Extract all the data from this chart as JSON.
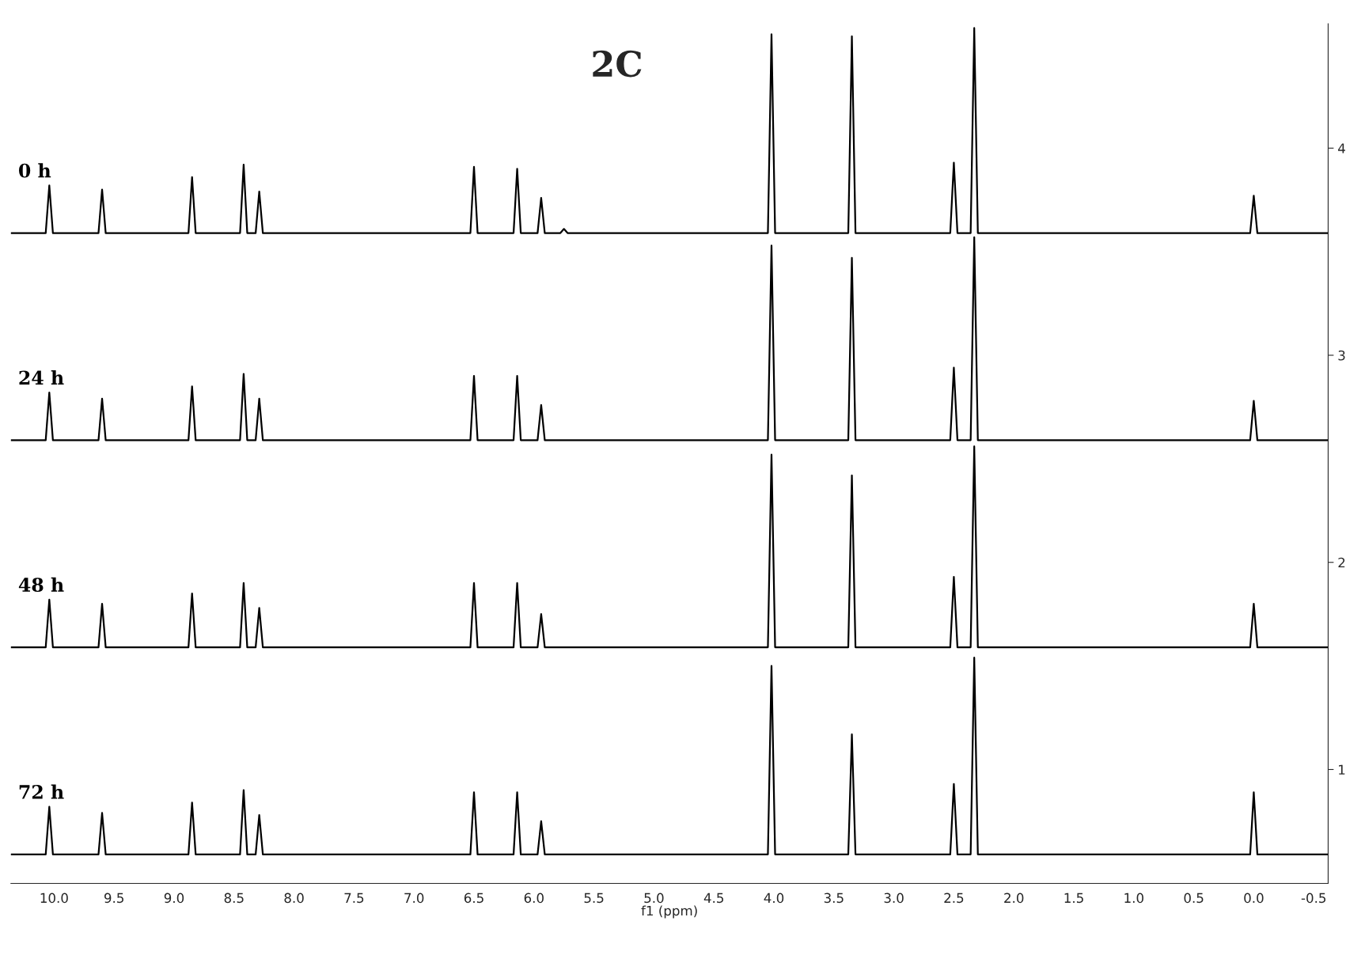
{
  "chart_data": {
    "type": "line",
    "title": "2C",
    "xlabel": "f1 (ppm)",
    "xlim": [
      10.36,
      -0.62
    ],
    "ylim": [
      0.45,
      4.6
    ],
    "xticks": [
      {
        "value": 10,
        "label": "10.0"
      },
      9.5,
      {
        "value": 9,
        "label": "9.0"
      },
      8.5,
      {
        "value": 8,
        "label": "8.0"
      },
      7.5,
      {
        "value": 7,
        "label": "7.0"
      },
      6.5,
      {
        "value": 6,
        "label": "6.0"
      },
      5.5,
      {
        "value": 5,
        "label": "5.0"
      },
      4.5,
      {
        "value": 4,
        "label": "4.0"
      },
      3.5,
      {
        "value": 3,
        "label": "3.0"
      },
      2.5,
      {
        "value": 2,
        "label": "2.0"
      },
      1.5,
      {
        "value": 1,
        "label": "1.0"
      },
      0.5,
      {
        "value": 0,
        "label": "0.0"
      },
      -0.5
    ],
    "yticks": [
      1,
      2,
      3,
      4
    ],
    "grid": false,
    "legend": false,
    "marker": "none",
    "line_style": "solid",
    "series": [
      {
        "name": "0 h",
        "color": "#000000",
        "x": [
          10.36,
          10.07,
          10.04,
          10.01,
          9.63,
          9.6,
          9.57,
          8.88,
          8.85,
          8.82,
          8.45,
          8.42,
          8.39,
          8.32,
          8.29,
          8.26,
          6.53,
          6.5,
          6.47,
          6.17,
          6.14,
          6.11,
          5.97,
          5.94,
          5.91,
          5.78,
          5.75,
          5.72,
          4.05,
          4.02,
          3.99,
          3.38,
          3.35,
          3.32,
          2.53,
          2.5,
          2.47,
          2.36,
          2.33,
          2.3,
          0.03,
          0.0,
          -0.03,
          -0.62
        ],
        "values": [
          3.59,
          3.59,
          3.82,
          3.59,
          3.59,
          3.8,
          3.59,
          3.59,
          3.86,
          3.59,
          3.59,
          3.92,
          3.59,
          3.59,
          3.79,
          3.59,
          3.59,
          3.91,
          3.59,
          3.59,
          3.9,
          3.59,
          3.59,
          3.76,
          3.59,
          3.59,
          3.61,
          3.59,
          3.59,
          4.55,
          3.59,
          3.59,
          4.54,
          3.59,
          3.59,
          3.93,
          3.59,
          3.59,
          4.58,
          3.59,
          3.59,
          3.77,
          3.59,
          3.59
        ]
      },
      {
        "name": "24 h",
        "color": "#000000",
        "x": [
          10.36,
          10.07,
          10.04,
          10.01,
          9.63,
          9.6,
          9.57,
          8.88,
          8.85,
          8.82,
          8.45,
          8.42,
          8.39,
          8.32,
          8.29,
          8.26,
          6.53,
          6.5,
          6.47,
          6.17,
          6.14,
          6.11,
          5.97,
          5.94,
          5.91,
          4.05,
          4.02,
          3.99,
          3.38,
          3.35,
          3.32,
          2.53,
          2.5,
          2.47,
          2.36,
          2.33,
          2.3,
          0.03,
          0.0,
          -0.03,
          -0.62
        ],
        "values": [
          2.59,
          2.59,
          2.82,
          2.59,
          2.59,
          2.79,
          2.59,
          2.59,
          2.85,
          2.59,
          2.59,
          2.91,
          2.59,
          2.59,
          2.79,
          2.59,
          2.59,
          2.9,
          2.59,
          2.59,
          2.9,
          2.59,
          2.59,
          2.76,
          2.59,
          2.59,
          3.53,
          2.59,
          2.59,
          3.47,
          2.59,
          2.59,
          2.94,
          2.59,
          2.59,
          3.57,
          2.59,
          2.59,
          2.78,
          2.59,
          2.59
        ]
      },
      {
        "name": "48 h",
        "color": "#000000",
        "x": [
          10.36,
          10.07,
          10.04,
          10.01,
          9.63,
          9.6,
          9.57,
          8.88,
          8.85,
          8.82,
          8.45,
          8.42,
          8.39,
          8.32,
          8.29,
          8.26,
          6.53,
          6.5,
          6.47,
          6.17,
          6.14,
          6.11,
          5.97,
          5.94,
          5.91,
          4.05,
          4.02,
          3.99,
          3.38,
          3.35,
          3.32,
          2.53,
          2.5,
          2.47,
          2.36,
          2.33,
          2.3,
          0.03,
          0.0,
          -0.03,
          -0.62
        ],
        "values": [
          1.59,
          1.59,
          1.82,
          1.59,
          1.59,
          1.8,
          1.59,
          1.59,
          1.85,
          1.59,
          1.59,
          1.9,
          1.59,
          1.59,
          1.78,
          1.59,
          1.59,
          1.9,
          1.59,
          1.59,
          1.9,
          1.59,
          1.59,
          1.75,
          1.59,
          1.59,
          2.52,
          1.59,
          1.59,
          2.42,
          1.59,
          1.59,
          1.93,
          1.59,
          1.59,
          2.56,
          1.59,
          1.59,
          1.8,
          1.59,
          1.59
        ]
      },
      {
        "name": "72 h",
        "color": "#000000",
        "x": [
          10.36,
          10.07,
          10.04,
          10.01,
          9.63,
          9.6,
          9.57,
          8.88,
          8.85,
          8.82,
          8.45,
          8.42,
          8.39,
          8.32,
          8.29,
          8.26,
          6.53,
          6.5,
          6.47,
          6.17,
          6.14,
          6.11,
          5.97,
          5.94,
          5.91,
          4.05,
          4.02,
          3.99,
          3.38,
          3.35,
          3.32,
          2.53,
          2.5,
          2.47,
          2.36,
          2.33,
          2.3,
          0.03,
          0.0,
          -0.03,
          -0.62
        ],
        "values": [
          0.59,
          0.59,
          0.82,
          0.59,
          0.59,
          0.79,
          0.59,
          0.59,
          0.84,
          0.59,
          0.59,
          0.9,
          0.59,
          0.59,
          0.78,
          0.59,
          0.59,
          0.89,
          0.59,
          0.59,
          0.89,
          0.59,
          0.59,
          0.75,
          0.59,
          0.59,
          1.5,
          0.59,
          0.59,
          1.17,
          0.59,
          0.59,
          0.93,
          0.59,
          0.59,
          1.54,
          0.59,
          0.59,
          0.89,
          0.59,
          0.59
        ]
      }
    ]
  }
}
